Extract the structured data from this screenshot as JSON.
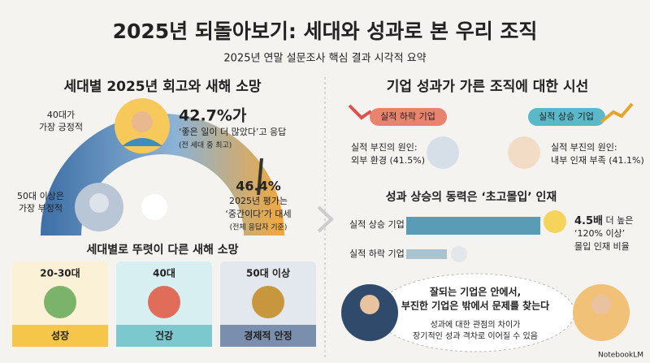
{
  "header": {
    "title": "2025년 되돌아보기: 세대와 성과로 본 우리 조직",
    "subtitle": "2025년 연말 설문조사 핵심 결과 시각적 요약"
  },
  "left": {
    "title": "세대별 2025년 회고와 새해 소망",
    "positive_label": [
      "40대가",
      "가장 긍정적"
    ],
    "stat_positive": {
      "value": "42.7%가",
      "text": "‘좋은 일이 더 많았다’고 응답",
      "note": "(전 세대 중 최고)"
    },
    "negative_label": [
      "50대 이상은",
      "가장 부정적"
    ],
    "stat_overall": {
      "value": "46.4%",
      "lines": [
        "2025년 평가는",
        "‘중간이다’가 대세"
      ],
      "note": "(전체 응답자 기준)"
    },
    "wishes": {
      "title": "세대별로 뚜렷이 다른 새해 소망",
      "cards": [
        {
          "group": "20-30대",
          "wish": "성장"
        },
        {
          "group": "40대",
          "wish": "건강"
        },
        {
          "group": "50대 이상",
          "wish": "경제적 안정"
        }
      ]
    }
  },
  "right": {
    "title": "기업 성과가 가른 조직에 대한 시선",
    "decline": {
      "tag": "실적 하락 기업",
      "cause": [
        "실적 부진의 원인:",
        "외부 환경 (41.5%)"
      ]
    },
    "rise": {
      "tag": "실적 상승 기업",
      "cause": [
        "실적 부진의 원인:",
        "내부 인재 부족 (41.1%)"
      ]
    },
    "driver": {
      "title": "성과 상승의 동력은 ‘초고몰입’ 인재",
      "bars": [
        "실적 상승 기업",
        "실적 하락 기업"
      ],
      "note": {
        "emphasis": "4.5배",
        "rest": " 더 높은",
        "lines": [
          "‘120% 이상’",
          "몰입 인재 비율"
        ]
      }
    },
    "quote": {
      "lines": [
        "잘되는 기업은 안에서,",
        "부진한 기업은 밖에서 문제를 찾는다"
      ],
      "caption": [
        "성과에 대한 관점의 차이가",
        "장기적인 성과 격차로 이어질 수 있음"
      ]
    }
  },
  "footer": "NotebookLM"
}
